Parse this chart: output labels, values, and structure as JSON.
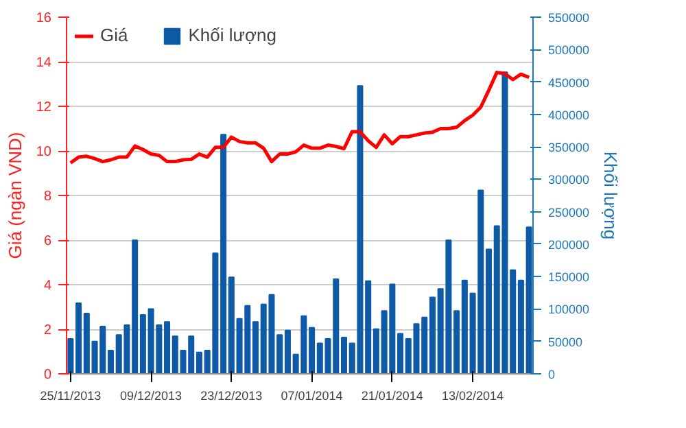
{
  "chart_data": {
    "type": "bar",
    "ylabel": "Giá (ngàn VND)",
    "y2label": "Khối lượng",
    "categories": [
      "25/11/2013",
      null,
      null,
      null,
      null,
      null,
      null,
      null,
      null,
      null,
      "09/12/2013",
      null,
      null,
      null,
      null,
      null,
      null,
      null,
      null,
      null,
      "23/12/2013",
      null,
      null,
      null,
      null,
      null,
      null,
      null,
      null,
      null,
      "07/01/2014",
      null,
      null,
      null,
      null,
      null,
      null,
      null,
      null,
      null,
      "21/01/2014",
      null,
      null,
      null,
      null,
      null,
      null,
      null,
      null,
      null,
      "13/02/2014",
      null,
      null,
      null,
      null,
      null,
      null,
      null
    ],
    "series": [
      {
        "name": "Giá",
        "type": "line",
        "color": "#ff0000",
        "values": [
          9.46,
          9.72,
          9.76,
          9.66,
          9.52,
          9.6,
          9.72,
          9.72,
          10.22,
          10.06,
          9.86,
          9.8,
          9.52,
          9.52,
          9.6,
          9.62,
          9.86,
          9.72,
          10.16,
          10.16,
          10.62,
          10.42,
          10.36,
          10.36,
          10.12,
          9.52,
          9.86,
          9.86,
          9.96,
          10.26,
          10.12,
          10.12,
          10.26,
          10.2,
          10.1,
          10.86,
          10.86,
          10.46,
          10.16,
          10.72,
          10.32,
          10.64,
          10.64,
          10.72,
          10.8,
          10.84,
          11.0,
          11.0,
          11.06,
          11.36,
          11.6,
          11.96,
          12.72,
          13.52,
          13.46,
          13.2,
          13.44,
          13.3
        ]
      },
      {
        "name": "Khối lượng",
        "axis": "y2",
        "color": "#0e5aa7",
        "values": [
          54000,
          109000,
          93000,
          50000,
          73000,
          36000,
          60000,
          75000,
          206000,
          91000,
          100000,
          75000,
          80000,
          58000,
          36000,
          58000,
          33000,
          36000,
          186000,
          369000,
          149000,
          85000,
          105000,
          80000,
          107000,
          122000,
          60000,
          67000,
          30000,
          89000,
          71000,
          47000,
          54000,
          146000,
          56000,
          47000,
          444000,
          143000,
          69000,
          97000,
          138000,
          62000,
          54000,
          77000,
          87000,
          118000,
          131000,
          206000,
          97000,
          144000,
          124000,
          283000,
          192000,
          228000,
          465000,
          160000,
          144000,
          226000
        ]
      }
    ],
    "ylim": [
      0,
      16
    ],
    "yticks": [
      0,
      2,
      4,
      6,
      8,
      10,
      12,
      14,
      16
    ],
    "y2lim": [
      0,
      550000
    ],
    "y2ticks": [
      0,
      50000,
      100000,
      150000,
      200000,
      250000,
      300000,
      350000,
      400000,
      450000,
      500000,
      550000
    ],
    "grid": "y",
    "legend": "top left"
  }
}
